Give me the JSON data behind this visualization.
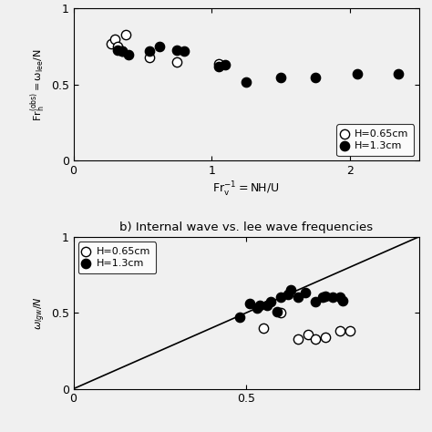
{
  "panel_a": {
    "xlabel": "$\\mathrm{Fr_v^{-1}=NH/U}$",
    "ylabel": "$\\mathrm{Fr_h^{(obs)}=\\omega_{lee}/N}$",
    "xlim": [
      0,
      2.5
    ],
    "ylim": [
      0,
      1.0
    ],
    "xticks": [
      0,
      1,
      2
    ],
    "yticks": [
      0,
      0.5,
      1
    ],
    "open_x": [
      0.27,
      0.3,
      0.32,
      0.35,
      0.38,
      0.55,
      0.75,
      1.05
    ],
    "open_y": [
      0.77,
      0.8,
      0.75,
      0.72,
      0.83,
      0.68,
      0.65,
      0.64
    ],
    "filled_x": [
      0.32,
      0.35,
      0.4,
      0.55,
      0.62,
      0.75,
      0.8,
      1.05,
      1.1,
      1.25,
      1.5,
      1.75,
      2.05,
      2.35
    ],
    "filled_y": [
      0.73,
      0.72,
      0.7,
      0.72,
      0.75,
      0.73,
      0.72,
      0.62,
      0.63,
      0.52,
      0.55,
      0.55,
      0.57,
      0.57
    ],
    "legend_open": "H=0.65cm",
    "legend_filled": "H=1.3cm"
  },
  "panel_b": {
    "title": "b) Internal wave vs. lee wave frequencies",
    "ylabel": "$\\omega_{lgw}/N$",
    "xlim": [
      0,
      1.0
    ],
    "ylim": [
      0,
      1.0
    ],
    "xticks": [
      0,
      0.5
    ],
    "yticks": [
      0,
      0.5,
      1.0
    ],
    "line_x": [
      0,
      1.0
    ],
    "line_y": [
      0,
      1.0
    ],
    "open_x": [
      0.55,
      0.6,
      0.65,
      0.68,
      0.7,
      0.73,
      0.77,
      0.8
    ],
    "open_y": [
      0.4,
      0.5,
      0.33,
      0.36,
      0.33,
      0.34,
      0.38,
      0.38
    ],
    "filled_x": [
      0.48,
      0.51,
      0.53,
      0.54,
      0.56,
      0.57,
      0.59,
      0.6,
      0.62,
      0.63,
      0.65,
      0.67,
      0.7,
      0.72,
      0.73,
      0.75,
      0.77,
      0.78
    ],
    "filled_y": [
      0.47,
      0.56,
      0.53,
      0.55,
      0.55,
      0.57,
      0.51,
      0.6,
      0.62,
      0.65,
      0.6,
      0.63,
      0.57,
      0.6,
      0.61,
      0.6,
      0.6,
      0.58
    ],
    "legend_open": "H=0.65cm",
    "legend_filled": "H=1.3cm"
  },
  "marker_size": 55,
  "linewidth": 1.2,
  "background": "#f0f0f0",
  "edgecolor": "#000000",
  "fig_width": 4.74,
  "fig_height": 4.74,
  "dpi": 100
}
